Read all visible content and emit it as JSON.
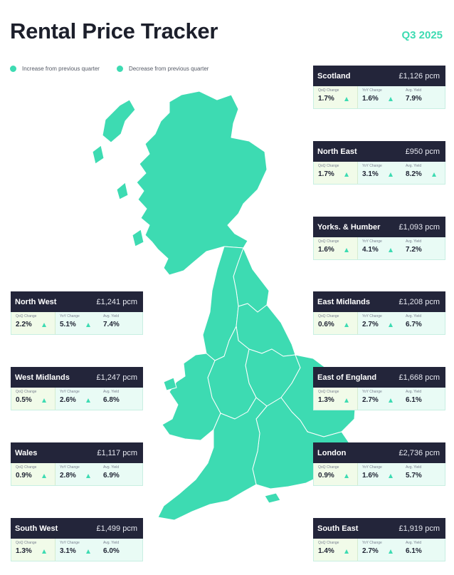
{
  "title": "Rental Price Tracker",
  "quarter": "Q3 2025",
  "colors": {
    "accent": "#3ddbb2",
    "card_header": "#23253a",
    "map_fill": "#3ddbb2"
  },
  "legend": [
    {
      "label": "Increase from previous quarter",
      "color": "#3ddbb2"
    },
    {
      "label": "Decrease from previous quarter",
      "color": "#3ddbb2"
    }
  ],
  "stat_labels": {
    "qoq": "QoQ Change",
    "yoy": "YoY Change",
    "yield": "Avg. Yield"
  },
  "regions": [
    {
      "name": "Scotland",
      "price": "£1,126 pcm",
      "qoq": "1.7%",
      "yoy": "1.6%",
      "yield": "7.9%"
    },
    {
      "name": "North East",
      "price": "£950 pcm",
      "qoq": "1.7%",
      "yoy": "3.1%",
      "yield": "8.2%"
    },
    {
      "name": "Yorks. & Humber",
      "price": "£1,093 pcm",
      "qoq": "1.6%",
      "yoy": "4.1%",
      "yield": "7.2%"
    },
    {
      "name": "North West",
      "price": "£1,241 pcm",
      "qoq": "2.2%",
      "yoy": "5.1%",
      "yield": "7.4%"
    },
    {
      "name": "East Midlands",
      "price": "£1,208 pcm",
      "qoq": "0.6%",
      "yoy": "2.7%",
      "yield": "6.7%"
    },
    {
      "name": "West Midlands",
      "price": "£1,247 pcm",
      "qoq": "0.5%",
      "yoy": "2.6%",
      "yield": "6.8%"
    },
    {
      "name": "East of England",
      "price": "£1,668 pcm",
      "qoq": "1.3%",
      "yoy": "2.7%",
      "yield": "6.1%"
    },
    {
      "name": "Wales",
      "price": "£1,117 pcm",
      "qoq": "0.9%",
      "yoy": "2.8%",
      "yield": "6.9%"
    },
    {
      "name": "London",
      "price": "£2,736 pcm",
      "qoq": "0.9%",
      "yoy": "1.6%",
      "yield": "5.7%"
    },
    {
      "name": "South West",
      "price": "£1,499 pcm",
      "qoq": "1.3%",
      "yoy": "3.1%",
      "yield": "6.0%"
    },
    {
      "name": "South East",
      "price": "£1,919 pcm",
      "qoq": "1.4%",
      "yoy": "2.7%",
      "yield": "6.1%"
    }
  ]
}
